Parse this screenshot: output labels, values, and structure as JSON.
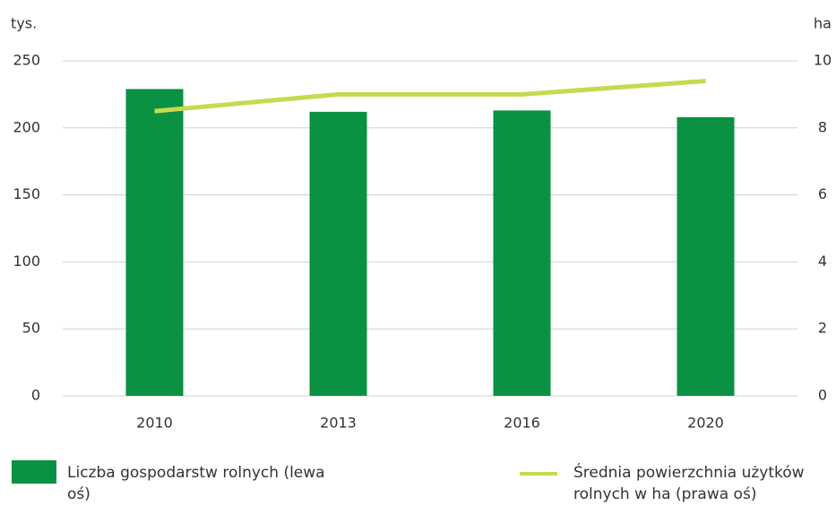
{
  "chart_data": {
    "type": "bar_line",
    "y_label": "tys.",
    "y2_label": "ha",
    "categories": [
      "2010",
      "2013",
      "2016",
      "2020"
    ],
    "series": [
      {
        "name": "Liczba gospodarstw rolnych (lewa oś)",
        "type": "bar",
        "color": "#0a9142",
        "values": [
          229,
          212,
          213,
          208
        ]
      },
      {
        "name": "Średnia powierzchnia użytków rolnych w ha (prawa oś)",
        "type": "line",
        "axis": "y2",
        "color": "#c8d850",
        "values": [
          8.5,
          9.0,
          9.0,
          9.4
        ]
      }
    ],
    "ylim": [
      0,
      250
    ],
    "yticks": [
      0,
      50,
      100,
      150,
      200,
      250
    ],
    "y2lim": [
      0,
      10
    ],
    "y2ticks": [
      0,
      2,
      4,
      6,
      8,
      10
    ],
    "grid": true
  }
}
